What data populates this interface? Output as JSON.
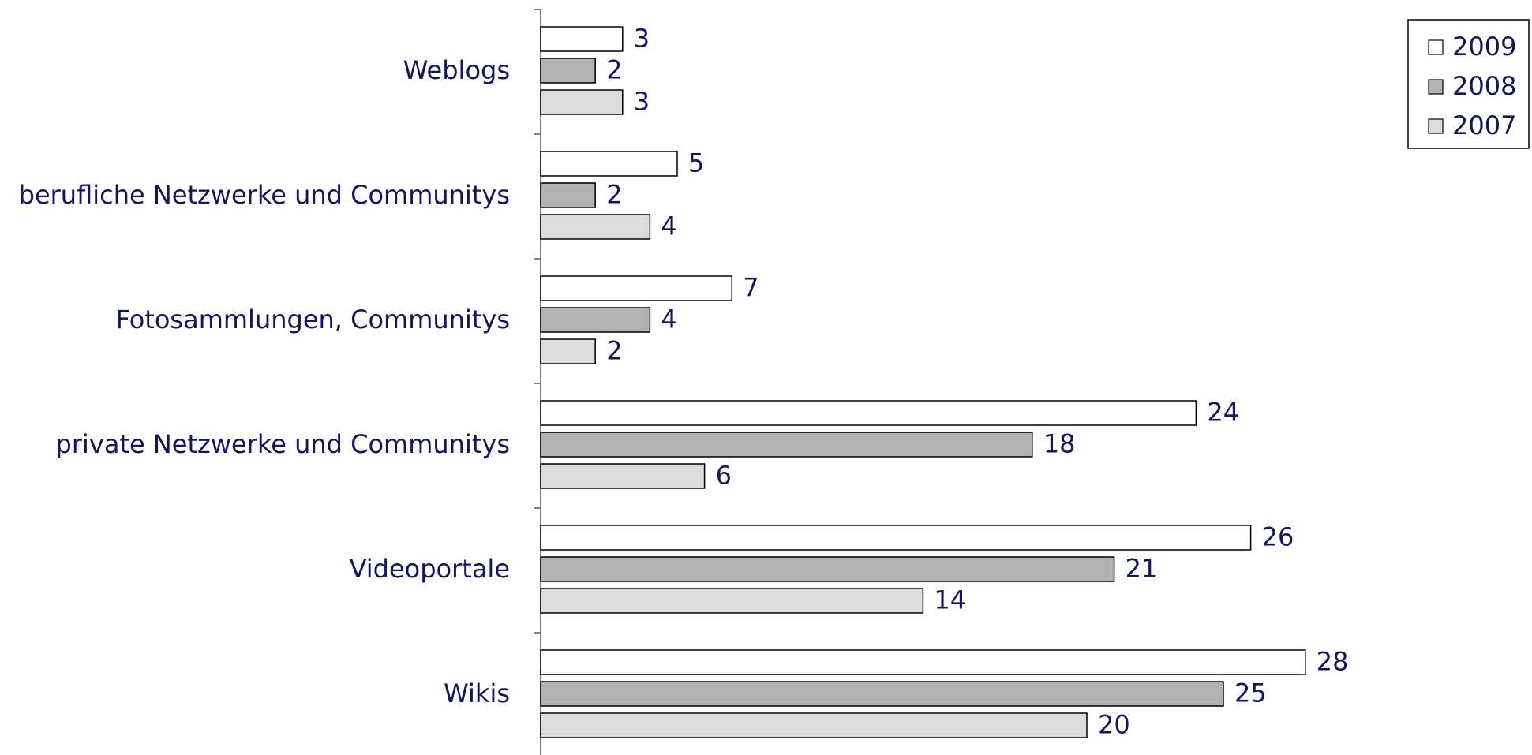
{
  "chart_data": {
    "type": "bar",
    "orientation": "horizontal",
    "categories": [
      "Weblogs",
      "berufliche Netzwerke und Communitys",
      "Fotosammlungen, Communitys",
      "private Netzwerke und Communitys",
      "Videoportale",
      "Wikis"
    ],
    "series": [
      {
        "name": "2009",
        "color": "#ffffff",
        "values": [
          3,
          5,
          7,
          24,
          26,
          28
        ]
      },
      {
        "name": "2008",
        "color": "#b2b2b2",
        "values": [
          2,
          2,
          4,
          18,
          21,
          25
        ]
      },
      {
        "name": "2007",
        "color": "#dcdcdc",
        "values": [
          3,
          4,
          2,
          6,
          14,
          20
        ]
      }
    ],
    "legend": "top-right"
  }
}
